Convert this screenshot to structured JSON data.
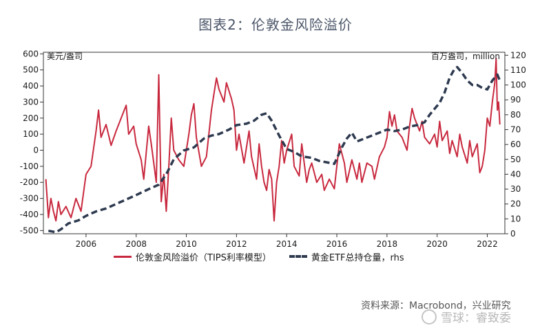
{
  "title": "图表2：伦敦金风险溢价",
  "left_unit": "美元/盎司",
  "right_unit": "百万盎司，million",
  "legend": {
    "series1": "伦敦金风险溢价（TIPS利率模型）",
    "series2": "黄金ETF总持仓量，rhs"
  },
  "source": "资料来源：Macrobond，兴业研究",
  "watermark": "雪球：睿致委",
  "colors": {
    "premium": "#c8283e",
    "etf": "#2e3a4f"
  },
  "chart_data": {
    "type": "line",
    "x_range": [
      2004.3,
      2022.7
    ],
    "x_ticks": [
      "2006",
      "2008",
      "2010",
      "2012",
      "2014",
      "2016",
      "2018",
      "2020",
      "2022"
    ],
    "ylim_left": [
      -520,
      610
    ],
    "ylim_right": [
      0,
      122
    ],
    "left_ticks": [
      "600",
      "500",
      "400",
      "300",
      "200",
      "100",
      "0",
      "-100",
      "-200",
      "-300",
      "-400",
      "-500"
    ],
    "right_ticks": [
      "120",
      "110",
      "100",
      "90",
      "80",
      "70",
      "60",
      "50",
      "40",
      "30",
      "20",
      "10",
      "0"
    ],
    "series": [
      {
        "name": "伦敦金风险溢价（TIPS利率模型）",
        "axis": "left",
        "points": [
          [
            2004.4,
            -180
          ],
          [
            2004.5,
            -420
          ],
          [
            2004.6,
            -300
          ],
          [
            2004.7,
            -380
          ],
          [
            2004.8,
            -440
          ],
          [
            2004.9,
            -320
          ],
          [
            2005.0,
            -400
          ],
          [
            2005.2,
            -350
          ],
          [
            2005.4,
            -420
          ],
          [
            2005.6,
            -300
          ],
          [
            2005.8,
            -380
          ],
          [
            2006.0,
            -150
          ],
          [
            2006.2,
            -100
          ],
          [
            2006.4,
            120
          ],
          [
            2006.5,
            250
          ],
          [
            2006.6,
            80
          ],
          [
            2006.8,
            160
          ],
          [
            2007.0,
            30
          ],
          [
            2007.2,
            120
          ],
          [
            2007.4,
            200
          ],
          [
            2007.6,
            280
          ],
          [
            2007.7,
            100
          ],
          [
            2007.9,
            150
          ],
          [
            2008.0,
            40
          ],
          [
            2008.2,
            -60
          ],
          [
            2008.3,
            -180
          ],
          [
            2008.5,
            150
          ],
          [
            2008.6,
            40
          ],
          [
            2008.8,
            -200
          ],
          [
            2008.9,
            470
          ],
          [
            2009.0,
            -320
          ],
          [
            2009.1,
            -150
          ],
          [
            2009.2,
            -380
          ],
          [
            2009.3,
            -100
          ],
          [
            2009.4,
            200
          ],
          [
            2009.5,
            0
          ],
          [
            2009.7,
            -60
          ],
          [
            2009.9,
            -100
          ],
          [
            2010.1,
            100
          ],
          [
            2010.2,
            220
          ],
          [
            2010.3,
            290
          ],
          [
            2010.4,
            80
          ],
          [
            2010.6,
            -100
          ],
          [
            2010.8,
            -40
          ],
          [
            2011.0,
            250
          ],
          [
            2011.1,
            350
          ],
          [
            2011.2,
            450
          ],
          [
            2011.3,
            380
          ],
          [
            2011.5,
            300
          ],
          [
            2011.6,
            420
          ],
          [
            2011.8,
            320
          ],
          [
            2011.9,
            250
          ],
          [
            2012.0,
            0
          ],
          [
            2012.1,
            100
          ],
          [
            2012.3,
            -80
          ],
          [
            2012.5,
            120
          ],
          [
            2012.6,
            -40
          ],
          [
            2012.8,
            -180
          ],
          [
            2012.9,
            40
          ],
          [
            2013.0,
            -100
          ],
          [
            2013.1,
            -200
          ],
          [
            2013.2,
            -250
          ],
          [
            2013.3,
            -120
          ],
          [
            2013.4,
            -180
          ],
          [
            2013.5,
            -440
          ],
          [
            2013.6,
            -200
          ],
          [
            2013.7,
            -100
          ],
          [
            2013.8,
            60
          ],
          [
            2013.9,
            -80
          ],
          [
            2014.0,
            0
          ],
          [
            2014.2,
            100
          ],
          [
            2014.3,
            -100
          ],
          [
            2014.5,
            -160
          ],
          [
            2014.6,
            40
          ],
          [
            2014.8,
            -200
          ],
          [
            2014.9,
            -120
          ],
          [
            2015.0,
            -80
          ],
          [
            2015.2,
            -200
          ],
          [
            2015.4,
            -150
          ],
          [
            2015.5,
            -250
          ],
          [
            2015.7,
            -180
          ],
          [
            2015.9,
            -240
          ],
          [
            2016.0,
            -100
          ],
          [
            2016.1,
            40
          ],
          [
            2016.3,
            -80
          ],
          [
            2016.4,
            -200
          ],
          [
            2016.6,
            -60
          ],
          [
            2016.8,
            -180
          ],
          [
            2016.9,
            -80
          ],
          [
            2017.0,
            -200
          ],
          [
            2017.2,
            -80
          ],
          [
            2017.4,
            -100
          ],
          [
            2017.5,
            -180
          ],
          [
            2017.7,
            -40
          ],
          [
            2017.9,
            20
          ],
          [
            2018.0,
            80
          ],
          [
            2018.1,
            240
          ],
          [
            2018.2,
            150
          ],
          [
            2018.3,
            220
          ],
          [
            2018.4,
            120
          ],
          [
            2018.6,
            80
          ],
          [
            2018.8,
            0
          ],
          [
            2018.9,
            150
          ],
          [
            2019.0,
            260
          ],
          [
            2019.1,
            200
          ],
          [
            2019.3,
            120
          ],
          [
            2019.4,
            180
          ],
          [
            2019.5,
            80
          ],
          [
            2019.7,
            40
          ],
          [
            2019.9,
            100
          ],
          [
            2020.0,
            20
          ],
          [
            2020.1,
            180
          ],
          [
            2020.2,
            60
          ],
          [
            2020.4,
            120
          ],
          [
            2020.5,
            -20
          ],
          [
            2020.6,
            60
          ],
          [
            2020.8,
            -40
          ],
          [
            2020.9,
            100
          ],
          [
            2021.0,
            20
          ],
          [
            2021.2,
            -80
          ],
          [
            2021.3,
            60
          ],
          [
            2021.4,
            -40
          ],
          [
            2021.6,
            40
          ],
          [
            2021.7,
            -140
          ],
          [
            2021.8,
            -100
          ],
          [
            2021.9,
            0
          ],
          [
            2022.0,
            200
          ],
          [
            2022.1,
            150
          ],
          [
            2022.2,
            300
          ],
          [
            2022.3,
            420
          ],
          [
            2022.35,
            570
          ],
          [
            2022.4,
            250
          ],
          [
            2022.45,
            300
          ],
          [
            2022.5,
            160
          ]
        ]
      },
      {
        "name": "黄金ETF总持仓量，rhs",
        "axis": "right",
        "points": [
          [
            2004.5,
            2
          ],
          [
            2004.8,
            1
          ],
          [
            2005.0,
            3
          ],
          [
            2005.3,
            7
          ],
          [
            2005.7,
            9
          ],
          [
            2006.0,
            12
          ],
          [
            2006.4,
            15
          ],
          [
            2006.8,
            17
          ],
          [
            2007.2,
            20
          ],
          [
            2007.6,
            23
          ],
          [
            2008.0,
            26
          ],
          [
            2008.5,
            30
          ],
          [
            2008.9,
            33
          ],
          [
            2009.2,
            40
          ],
          [
            2009.5,
            50
          ],
          [
            2009.9,
            56
          ],
          [
            2010.3,
            58
          ],
          [
            2010.7,
            64
          ],
          [
            2011.0,
            66
          ],
          [
            2011.3,
            67
          ],
          [
            2011.7,
            70
          ],
          [
            2012.0,
            73
          ],
          [
            2012.4,
            74
          ],
          [
            2012.7,
            76
          ],
          [
            2013.0,
            80
          ],
          [
            2013.2,
            81
          ],
          [
            2013.4,
            76
          ],
          [
            2013.7,
            66
          ],
          [
            2014.0,
            57
          ],
          [
            2014.3,
            55
          ],
          [
            2014.6,
            52
          ],
          [
            2015.0,
            51
          ],
          [
            2015.3,
            49
          ],
          [
            2015.6,
            48
          ],
          [
            2015.9,
            47
          ],
          [
            2016.2,
            58
          ],
          [
            2016.4,
            64
          ],
          [
            2016.6,
            68
          ],
          [
            2016.8,
            62
          ],
          [
            2017.1,
            64
          ],
          [
            2017.4,
            66
          ],
          [
            2017.7,
            68
          ],
          [
            2018.0,
            70
          ],
          [
            2018.3,
            69
          ],
          [
            2018.6,
            70
          ],
          [
            2018.9,
            72
          ],
          [
            2019.2,
            73
          ],
          [
            2019.5,
            75
          ],
          [
            2019.7,
            80
          ],
          [
            2019.9,
            84
          ],
          [
            2020.1,
            88
          ],
          [
            2020.3,
            95
          ],
          [
            2020.5,
            105
          ],
          [
            2020.7,
            111
          ],
          [
            2020.8,
            112
          ],
          [
            2021.0,
            108
          ],
          [
            2021.2,
            103
          ],
          [
            2021.4,
            100
          ],
          [
            2021.6,
            100
          ],
          [
            2021.8,
            98
          ],
          [
            2022.0,
            97
          ],
          [
            2022.2,
            103
          ],
          [
            2022.4,
            107
          ],
          [
            2022.5,
            103
          ]
        ]
      }
    ]
  }
}
